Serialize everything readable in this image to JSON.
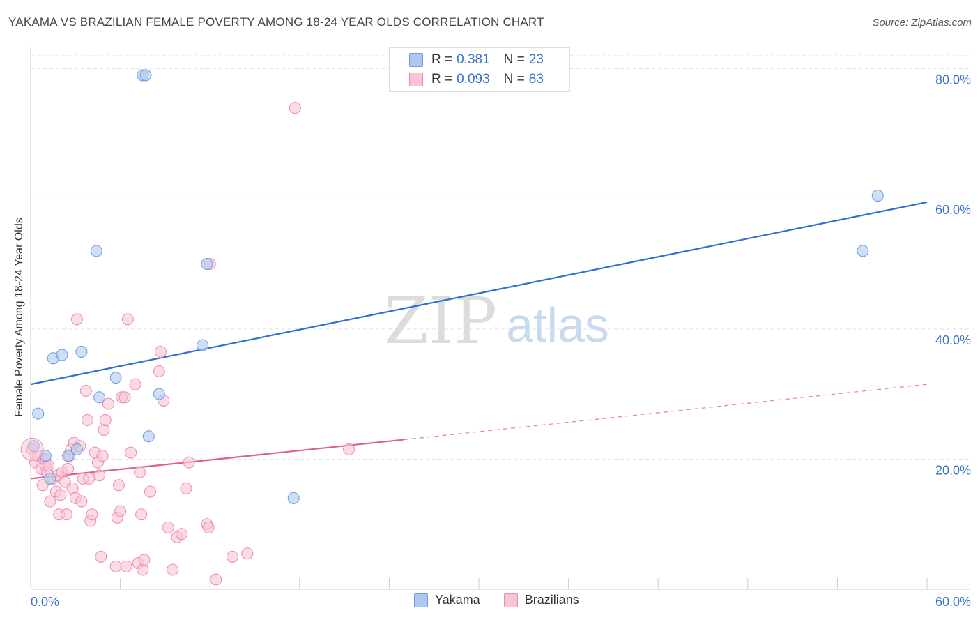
{
  "header": {
    "title": "YAKAMA VS BRAZILIAN FEMALE POVERTY AMONG 18-24 YEAR OLDS CORRELATION CHART",
    "source": "Source: ZipAtlas.com"
  },
  "watermark": {
    "zip": "ZIP",
    "atlas": "atlas"
  },
  "legend": {
    "rows": [
      {
        "r_label": "R =",
        "r_value": "0.381",
        "n_label": "N =",
        "n_value": "23",
        "color": "#aec9f0",
        "border": "#6b9be0"
      },
      {
        "r_label": "R =",
        "r_value": "0.093",
        "n_label": "N =",
        "n_value": "83",
        "color": "#f8c4d6",
        "border": "#ec8aab"
      }
    ]
  },
  "bottom_legend": {
    "items": [
      "Yakama",
      "Brazilians"
    ]
  },
  "chart_data": {
    "type": "scatter",
    "title": "YAKAMA VS BRAZILIAN FEMALE POVERTY AMONG 18-24 YEAR OLDS CORRELATION CHART",
    "xlabel": "",
    "ylabel": "Female Poverty Among 18-24 Year Olds",
    "xlim": [
      0,
      60
    ],
    "ylim": [
      0,
      82
    ],
    "x_tick_labels": [
      "0.0%",
      "60.0%"
    ],
    "y_ticks": [
      20,
      40,
      60,
      80
    ],
    "y_tick_labels": [
      "20.0%",
      "40.0%",
      "60.0%",
      "80.0%"
    ],
    "grid": true,
    "legend_position": "top-center",
    "series": [
      {
        "name": "Yakama",
        "color": "#aec9f0",
        "stroke": "#6b9be0",
        "line_color": "#2f6fcf",
        "points": [
          [
            0.2,
            22.0
          ],
          [
            0.5,
            27.0
          ],
          [
            1.0,
            20.5
          ],
          [
            1.3,
            17.0
          ],
          [
            1.5,
            35.5
          ],
          [
            2.1,
            36.0
          ],
          [
            2.5,
            20.5
          ],
          [
            3.1,
            21.5
          ],
          [
            3.4,
            36.5
          ],
          [
            4.4,
            52.0
          ],
          [
            4.6,
            29.5
          ],
          [
            5.7,
            32.5
          ],
          [
            7.5,
            79.0
          ],
          [
            7.7,
            79.0
          ],
          [
            7.9,
            23.5
          ],
          [
            8.6,
            30.0
          ],
          [
            11.5,
            37.5
          ],
          [
            11.8,
            50.0
          ],
          [
            17.6,
            14.0
          ],
          [
            55.7,
            52.0
          ],
          [
            56.7,
            60.5
          ]
        ],
        "trend": {
          "x": [
            0,
            60
          ],
          "y": [
            31.5,
            59.5
          ],
          "style": "solid"
        }
      },
      {
        "name": "Brazilians",
        "color": "#f8c4d6",
        "stroke": "#ec8aab",
        "line_color": "#e0608a",
        "points": [
          [
            0.1,
            21.5
          ],
          [
            0.3,
            19.5
          ],
          [
            0.5,
            20.5
          ],
          [
            0.7,
            18.5
          ],
          [
            0.8,
            16.0
          ],
          [
            0.9,
            20.0
          ],
          [
            1.0,
            19.0
          ],
          [
            1.1,
            18.0
          ],
          [
            1.2,
            19.0
          ],
          [
            1.3,
            13.5
          ],
          [
            1.5,
            17.0
          ],
          [
            1.7,
            15.0
          ],
          [
            1.8,
            17.5
          ],
          [
            1.9,
            11.5
          ],
          [
            2.0,
            14.5
          ],
          [
            2.1,
            18.0
          ],
          [
            2.3,
            16.5
          ],
          [
            2.4,
            11.5
          ],
          [
            2.5,
            18.5
          ],
          [
            2.6,
            20.5
          ],
          [
            2.7,
            21.5
          ],
          [
            2.8,
            15.5
          ],
          [
            2.9,
            22.5
          ],
          [
            3.0,
            14.0
          ],
          [
            3.1,
            41.5
          ],
          [
            3.3,
            22.0
          ],
          [
            3.4,
            13.5
          ],
          [
            3.5,
            17.0
          ],
          [
            3.7,
            30.5
          ],
          [
            3.8,
            26.0
          ],
          [
            3.9,
            17.0
          ],
          [
            4.0,
            10.5
          ],
          [
            4.1,
            11.5
          ],
          [
            4.3,
            21.0
          ],
          [
            4.5,
            19.5
          ],
          [
            4.6,
            17.5
          ],
          [
            4.7,
            5.0
          ],
          [
            4.8,
            20.5
          ],
          [
            4.9,
            24.5
          ],
          [
            5.0,
            26.0
          ],
          [
            5.2,
            28.5
          ],
          [
            5.7,
            3.5
          ],
          [
            5.8,
            11.0
          ],
          [
            5.9,
            16.0
          ],
          [
            6.0,
            12.0
          ],
          [
            6.1,
            29.5
          ],
          [
            6.3,
            29.5
          ],
          [
            6.4,
            3.5
          ],
          [
            6.5,
            41.5
          ],
          [
            6.7,
            21.0
          ],
          [
            7.0,
            31.5
          ],
          [
            7.2,
            4.0
          ],
          [
            7.3,
            18.0
          ],
          [
            7.4,
            11.5
          ],
          [
            7.5,
            3.0
          ],
          [
            7.6,
            4.5
          ],
          [
            8.0,
            15.0
          ],
          [
            8.6,
            33.5
          ],
          [
            8.7,
            36.5
          ],
          [
            8.9,
            29.0
          ],
          [
            9.2,
            9.5
          ],
          [
            9.5,
            3.0
          ],
          [
            9.8,
            8.0
          ],
          [
            10.1,
            8.5
          ],
          [
            10.4,
            15.5
          ],
          [
            10.6,
            19.5
          ],
          [
            11.8,
            10.0
          ],
          [
            11.9,
            9.5
          ],
          [
            12.0,
            50.0
          ],
          [
            12.4,
            1.5
          ],
          [
            13.5,
            5.0
          ],
          [
            14.5,
            5.5
          ],
          [
            17.7,
            74.0
          ],
          [
            21.3,
            21.5
          ]
        ],
        "trend": {
          "x": [
            0,
            25
          ],
          "y": [
            17.0,
            23.0
          ],
          "style": "solid"
        },
        "trend_extension": {
          "x": [
            25,
            60
          ],
          "y": [
            23.0,
            31.5
          ],
          "style": "dashed"
        }
      }
    ]
  }
}
